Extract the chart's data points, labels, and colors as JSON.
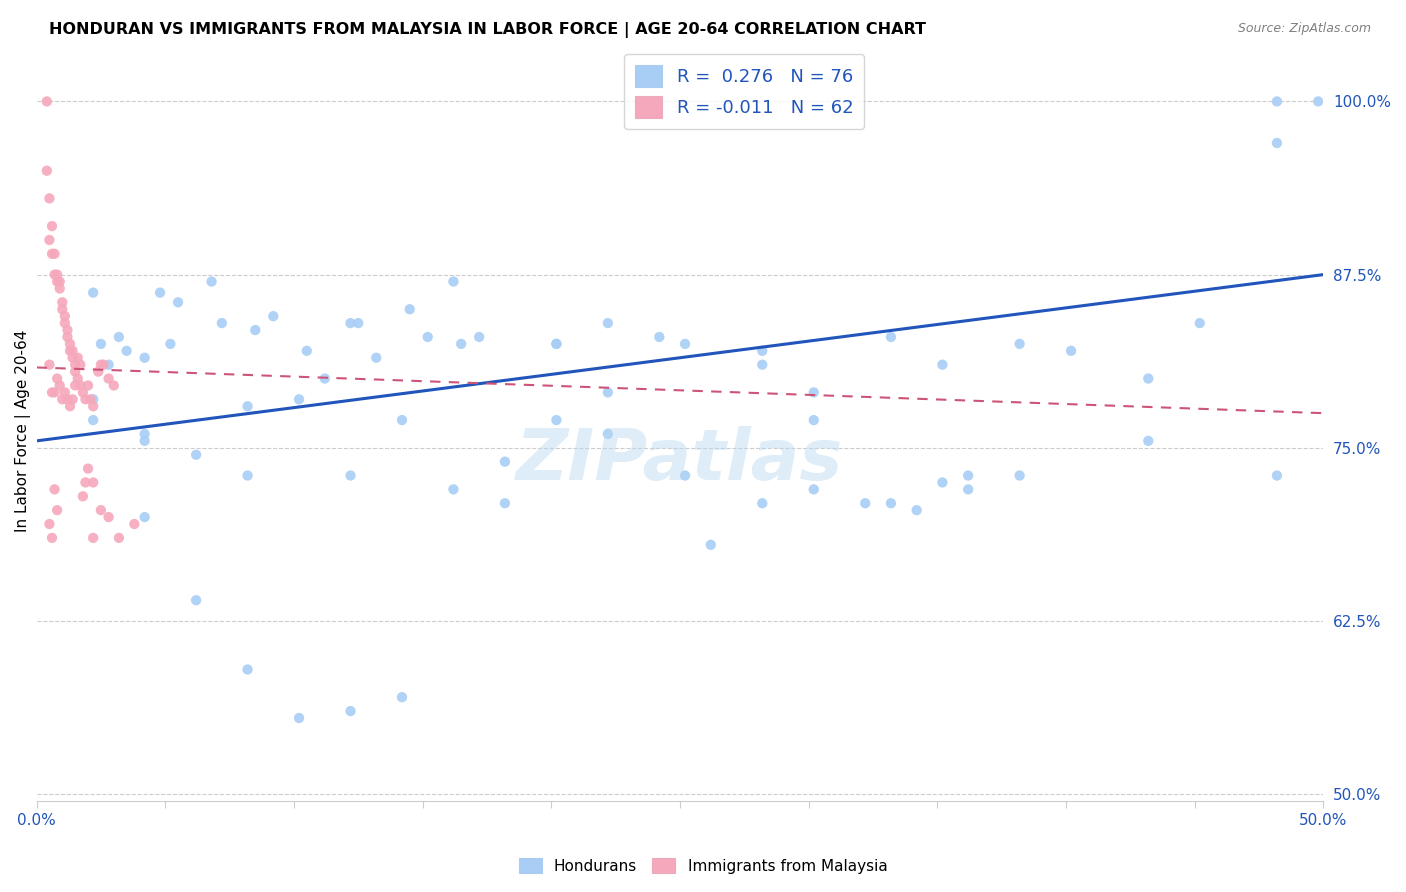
{
  "title": "HONDURAN VS IMMIGRANTS FROM MALAYSIA IN LABOR FORCE | AGE 20-64 CORRELATION CHART",
  "source": "Source: ZipAtlas.com",
  "ylabel": "In Labor Force | Age 20-64",
  "ytick_labels": [
    "50.0%",
    "62.5%",
    "75.0%",
    "87.5%",
    "100.0%"
  ],
  "ytick_values": [
    0.5,
    0.625,
    0.75,
    0.875,
    1.0
  ],
  "xlim": [
    0.0,
    0.5
  ],
  "ylim": [
    0.495,
    1.03
  ],
  "blue_color": "#A8CEF5",
  "pink_color": "#F5A8BC",
  "blue_line_color": "#2255BB",
  "pink_line_color": "#CC5577",
  "R_blue": 0.276,
  "N_blue": 76,
  "R_pink": -0.011,
  "N_pink": 62,
  "legend_label_blue": "Hondurans",
  "legend_label_pink": "Immigrants from Malaysia",
  "watermark": "ZIPatlas",
  "blue_x": [
    0.022,
    0.048,
    0.055,
    0.068,
    0.028,
    0.035,
    0.042,
    0.085,
    0.105,
    0.125,
    0.145,
    0.165,
    0.025,
    0.032,
    0.052,
    0.072,
    0.092,
    0.112,
    0.132,
    0.152,
    0.172,
    0.202,
    0.222,
    0.252,
    0.282,
    0.302,
    0.332,
    0.352,
    0.382,
    0.402,
    0.432,
    0.452,
    0.482,
    0.498,
    0.022,
    0.042,
    0.062,
    0.082,
    0.102,
    0.122,
    0.142,
    0.162,
    0.182,
    0.202,
    0.222,
    0.252,
    0.282,
    0.302,
    0.332,
    0.352,
    0.042,
    0.062,
    0.082,
    0.102,
    0.122,
    0.142,
    0.182,
    0.222,
    0.262,
    0.302,
    0.342,
    0.382,
    0.432,
    0.482,
    0.022,
    0.042,
    0.082,
    0.122,
    0.162,
    0.202,
    0.242,
    0.282,
    0.322,
    0.362,
    0.482,
    0.362
  ],
  "blue_y": [
    0.862,
    0.862,
    0.855,
    0.87,
    0.81,
    0.82,
    0.815,
    0.835,
    0.82,
    0.84,
    0.85,
    0.825,
    0.825,
    0.83,
    0.825,
    0.84,
    0.845,
    0.8,
    0.815,
    0.83,
    0.83,
    0.825,
    0.84,
    0.825,
    0.82,
    0.79,
    0.83,
    0.81,
    0.825,
    0.82,
    0.8,
    0.84,
    1.0,
    1.0,
    0.785,
    0.76,
    0.745,
    0.73,
    0.785,
    0.73,
    0.77,
    0.72,
    0.74,
    0.77,
    0.79,
    0.73,
    0.71,
    0.77,
    0.71,
    0.725,
    0.7,
    0.64,
    0.59,
    0.555,
    0.56,
    0.57,
    0.71,
    0.76,
    0.68,
    0.72,
    0.705,
    0.73,
    0.755,
    0.73,
    0.77,
    0.755,
    0.78,
    0.84,
    0.87,
    0.825,
    0.83,
    0.81,
    0.71,
    0.72,
    0.97,
    0.73
  ],
  "pink_x": [
    0.004,
    0.004,
    0.005,
    0.005,
    0.006,
    0.006,
    0.007,
    0.007,
    0.008,
    0.008,
    0.009,
    0.009,
    0.01,
    0.01,
    0.011,
    0.011,
    0.012,
    0.012,
    0.013,
    0.013,
    0.014,
    0.014,
    0.015,
    0.015,
    0.016,
    0.017,
    0.018,
    0.019,
    0.02,
    0.021,
    0.022,
    0.024,
    0.026,
    0.028,
    0.03,
    0.005,
    0.006,
    0.007,
    0.008,
    0.009,
    0.01,
    0.011,
    0.012,
    0.013,
    0.014,
    0.015,
    0.016,
    0.017,
    0.018,
    0.019,
    0.02,
    0.022,
    0.025,
    0.005,
    0.006,
    0.007,
    0.008,
    0.022,
    0.025,
    0.028,
    0.032,
    0.038
  ],
  "pink_y": [
    1.0,
    0.95,
    0.93,
    0.9,
    0.91,
    0.89,
    0.89,
    0.875,
    0.87,
    0.875,
    0.87,
    0.865,
    0.855,
    0.85,
    0.845,
    0.84,
    0.835,
    0.83,
    0.825,
    0.82,
    0.82,
    0.815,
    0.81,
    0.805,
    0.8,
    0.795,
    0.79,
    0.785,
    0.795,
    0.785,
    0.78,
    0.805,
    0.81,
    0.8,
    0.795,
    0.81,
    0.79,
    0.79,
    0.8,
    0.795,
    0.785,
    0.79,
    0.785,
    0.78,
    0.785,
    0.795,
    0.815,
    0.81,
    0.715,
    0.725,
    0.735,
    0.725,
    0.81,
    0.695,
    0.685,
    0.72,
    0.705,
    0.685,
    0.705,
    0.7,
    0.685,
    0.695
  ]
}
